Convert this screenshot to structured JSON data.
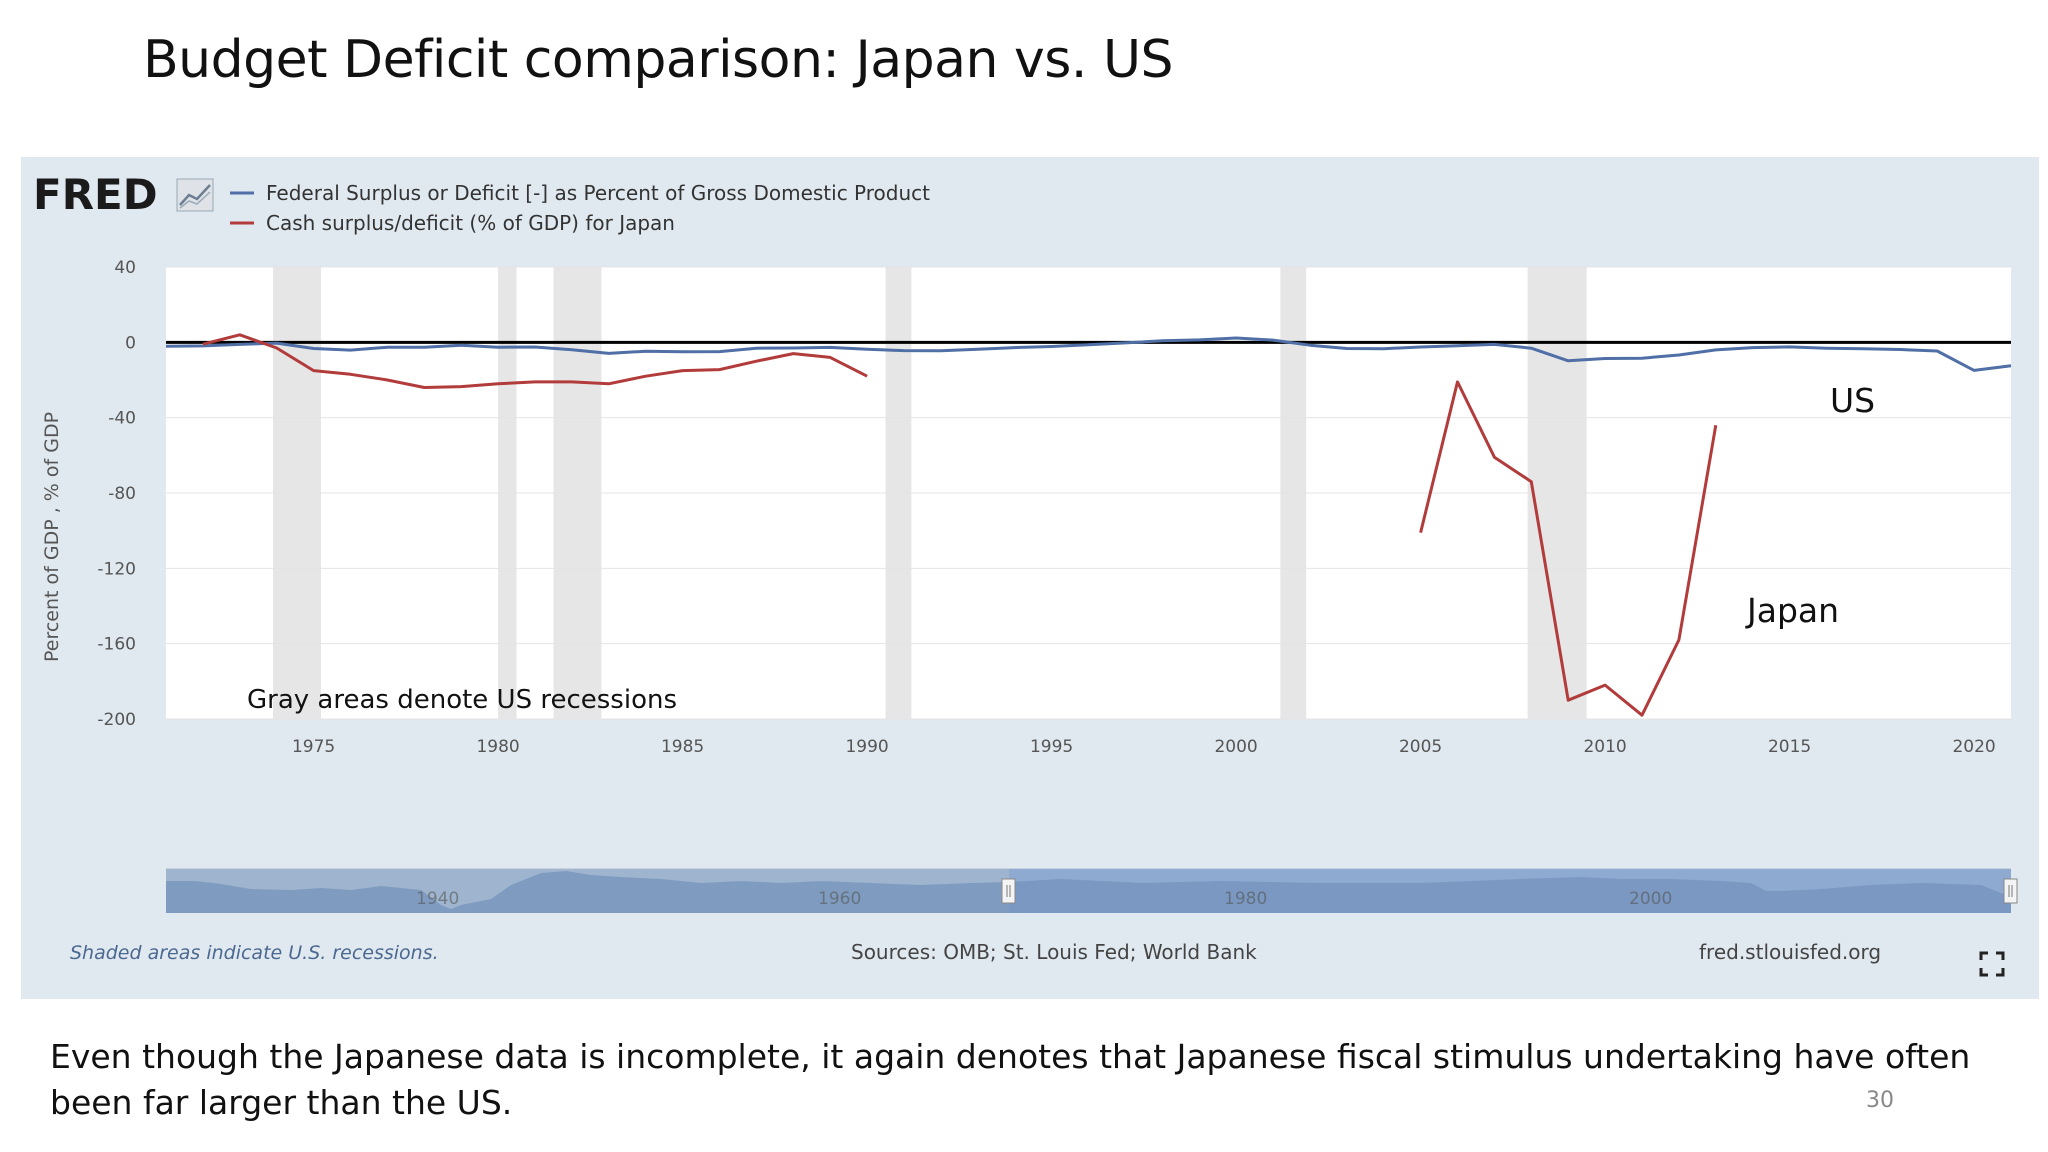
{
  "slide": {
    "title": "Budget Deficit comparison: Japan vs. US",
    "caption": "Even though the Japanese data is incomplete, it again denotes that Japanese fiscal stimulus undertaking have often been far larger than the US.",
    "page_number": "30"
  },
  "fred": {
    "logo": "FRED",
    "footer_note": "Shaded areas indicate U.S. recessions.",
    "sources": "Sources: OMB; St. Louis Fed; World Bank",
    "site": "fred.stlouisfed.org",
    "annotation_recessions": "Gray areas denote US recessions",
    "label_us": "US",
    "label_japan": "Japan",
    "brush_years": [
      "1940",
      "1960",
      "1980",
      "2000"
    ]
  },
  "colors": {
    "us": "#4f6fa6",
    "japan": "#b23b3b",
    "panel_bg": "#e1e9f0",
    "recession": "#e6e6e6",
    "zero_line": "#000000"
  },
  "icons": [
    "fred-logo-chart-icon",
    "fullscreen-icon"
  ],
  "chart_data": {
    "type": "line",
    "xlabel": "",
    "ylabel": "Percent of GDP , % of GDP",
    "xlim": [
      1971,
      2021
    ],
    "ylim": [
      -200,
      40
    ],
    "yticks": [
      40,
      0,
      -40,
      -80,
      -120,
      -160,
      -200
    ],
    "xticks": [
      1975,
      1980,
      1985,
      1990,
      1995,
      2000,
      2005,
      2010,
      2015,
      2020
    ],
    "grid": true,
    "legend_position": "top-left",
    "recessions": [
      [
        1973.9,
        1975.2
      ],
      [
        1980.0,
        1980.5
      ],
      [
        1981.5,
        1982.8
      ],
      [
        1990.5,
        1991.2
      ],
      [
        2001.2,
        2001.9
      ],
      [
        2007.9,
        2009.5
      ]
    ],
    "series": [
      {
        "name": "Federal Surplus or Deficit [-] as Percent of Gross Domestic Product",
        "color": "#4f6fa6",
        "x": [
          1971,
          1972,
          1973,
          1974,
          1975,
          1976,
          1977,
          1978,
          1979,
          1980,
          1981,
          1982,
          1983,
          1984,
          1985,
          1986,
          1987,
          1988,
          1989,
          1990,
          1991,
          1992,
          1993,
          1994,
          1995,
          1996,
          1997,
          1998,
          1999,
          2000,
          2001,
          2002,
          2003,
          2004,
          2005,
          2006,
          2007,
          2008,
          2009,
          2010,
          2011,
          2012,
          2013,
          2014,
          2015,
          2016,
          2017,
          2018,
          2019,
          2020,
          2021
        ],
        "values": [
          -2.1,
          -1.9,
          -1.1,
          -0.4,
          -3.3,
          -4.1,
          -2.6,
          -2.6,
          -1.6,
          -2.6,
          -2.5,
          -3.9,
          -5.9,
          -4.7,
          -5.0,
          -4.9,
          -3.1,
          -3.0,
          -2.7,
          -3.7,
          -4.4,
          -4.5,
          -3.7,
          -2.8,
          -2.2,
          -1.3,
          -0.3,
          0.8,
          1.3,
          2.3,
          1.2,
          -1.5,
          -3.3,
          -3.4,
          -2.5,
          -1.8,
          -1.1,
          -3.1,
          -9.8,
          -8.6,
          -8.4,
          -6.7,
          -4.0,
          -2.8,
          -2.4,
          -3.1,
          -3.4,
          -3.8,
          -4.6,
          -14.9,
          -12.4
        ]
      },
      {
        "name": "Cash surplus/deficit (% of GDP) for Japan",
        "color": "#b23b3b",
        "segments": [
          {
            "x": [
              1972,
              1973,
              1974,
              1975,
              1976,
              1977,
              1978,
              1979,
              1980,
              1981,
              1982,
              1983,
              1984,
              1985,
              1986,
              1987,
              1988,
              1989,
              1990
            ],
            "values": [
              -1.0,
              4.0,
              -3.0,
              -15.0,
              -17.0,
              -20.0,
              -24.0,
              -23.5,
              -22.0,
              -21.0,
              -21.0,
              -22.0,
              -18.0,
              -15.0,
              -14.5,
              -10.0,
              -6.0,
              -8.0,
              -18.0
            ]
          },
          {
            "x": [
              2005,
              2006,
              2007,
              2008,
              2009,
              2010,
              2011,
              2012,
              2013
            ],
            "values": [
              -101.0,
              -21.0,
              -61.0,
              -74.0,
              -190.0,
              -182.0,
              -198.0,
              -158.0,
              -44.0
            ]
          }
        ]
      }
    ]
  }
}
